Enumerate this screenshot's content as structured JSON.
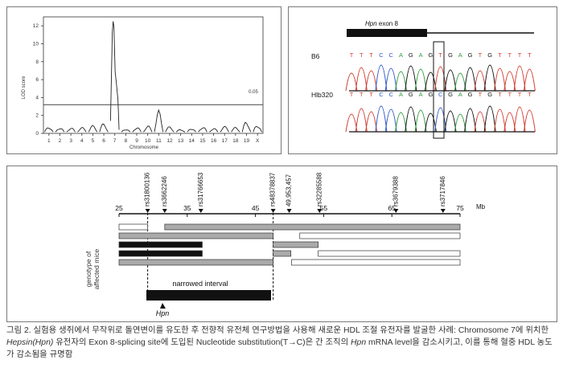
{
  "panel_a": {
    "y_axis_label": "LOD score",
    "x_axis_label": "Chromosome",
    "threshold_label": "0.05",
    "y_ticks": [
      "0",
      "2",
      "4",
      "6",
      "8",
      "10",
      "12"
    ],
    "chromosomes": [
      "1",
      "2",
      "3",
      "4",
      "5",
      "6",
      "7",
      "8",
      "9",
      "10",
      "11",
      "12",
      "13",
      "14",
      "15",
      "16",
      "17",
      "18",
      "19",
      "X"
    ]
  },
  "chart_data": {
    "type": "line",
    "title": "",
    "xlabel": "Chromosome",
    "ylabel": "LOD score",
    "ylim": [
      0,
      13
    ],
    "threshold": 3.2,
    "threshold_label": "0.05",
    "categories": [
      "1",
      "2",
      "3",
      "4",
      "5",
      "6",
      "7",
      "8",
      "9",
      "10",
      "11",
      "12",
      "13",
      "14",
      "15",
      "16",
      "17",
      "18",
      "19",
      "X"
    ],
    "series": [
      {
        "values": [
          0.9,
          0.8,
          0.7,
          0.7,
          0.9,
          1.2,
          12.5,
          0.6,
          0.8,
          0.9,
          2.6,
          0.8,
          0.5,
          0.7,
          0.9,
          0.6,
          0.8,
          0.7,
          1.5,
          1.2
        ]
      }
    ]
  },
  "panel_b": {
    "gene_label_italic": "Hpn",
    "gene_label_rest": " exon 8",
    "strain_1": "B6",
    "strain_2": "Hlb320",
    "seq_1": "TTTCCAGAGTGAGTGTTTT",
    "seq_2": "TTTCCAGAGCGAGTGTTTT"
  },
  "panel_c": {
    "markers": [
      "rs31800136",
      "rs3662246",
      "rs31766653",
      "rs48378837",
      "49,953,457",
      "rs32285588",
      "rs3679388",
      "rs3717846"
    ],
    "scale_ticks": [
      "25",
      "35",
      "45",
      "55",
      "65",
      "75"
    ],
    "scale_unit": "Mb",
    "y_label_line1": "genotype of",
    "y_label_line2": "affected mice",
    "interval_label": "narrowed interval",
    "gene_label": "Hpn"
  },
  "caption": {
    "part1": "그림 2. 실험용 생쥐에서 무작위로 돌연변이를 유도한 후 전향적 유전체 연구방법을 사용해 새로운 HDL 조절 유전자를 발굴한 사례: Chromosome 7에 위치한 ",
    "italic1": "Hepsin(Hpn)",
    "part2": " 유전자의 Exon 8-splicing site에 도입된 Nucleotide substitution(T→C)은 간 조직의 ",
    "italic2": "Hpn",
    "part3": " mRNA level을 감소시키고, 이를 통해 혈중 HDL 농도가 감소됨을 규명함"
  },
  "colors": {
    "trace_A": "#2e9c3a",
    "trace_C": "#2f57c8",
    "trace_G": "#111111",
    "trace_T": "#d23b2f",
    "bar_black": "#111111",
    "bar_gray": "#aaaaaa"
  }
}
